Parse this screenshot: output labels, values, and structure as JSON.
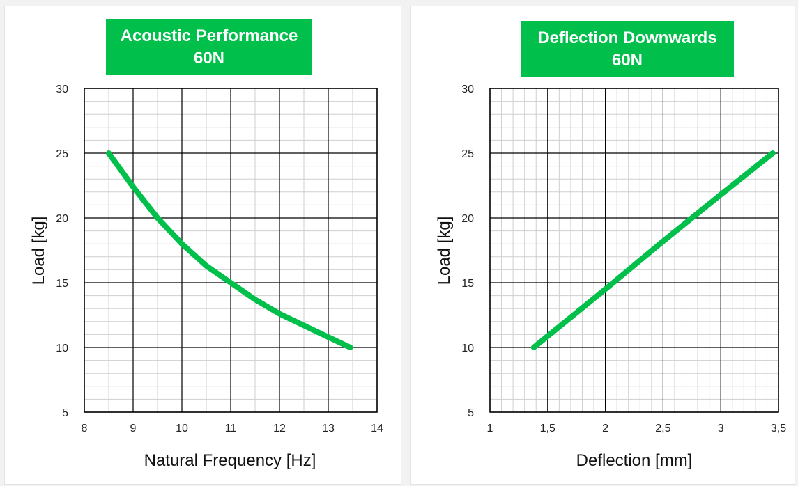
{
  "chart_data": [
    {
      "type": "line",
      "title": "Acoustic Performance",
      "subtitle": "60N",
      "xlabel": "Natural Frequency [Hz]",
      "ylabel": "Load [kg]",
      "xlim": [
        8,
        14
      ],
      "ylim": [
        5,
        30
      ],
      "x_ticks": [
        "8",
        "9",
        "10",
        "11",
        "12",
        "13",
        "14"
      ],
      "y_ticks": [
        "5",
        "10",
        "15",
        "20",
        "25",
        "30"
      ],
      "x_tick_values": [
        8,
        9,
        10,
        11,
        12,
        13,
        14
      ],
      "y_tick_values": [
        5,
        10,
        15,
        20,
        25,
        30
      ],
      "x_minor_step": 0.5,
      "y_minor_step": 1,
      "grid": true,
      "series": [
        {
          "x": [
            8.5,
            9.0,
            9.5,
            10.0,
            10.5,
            11.0,
            11.5,
            12.0,
            12.5,
            13.0,
            13.45
          ],
          "y": [
            25.0,
            22.4,
            20.0,
            18.0,
            16.3,
            15.0,
            13.7,
            12.6,
            11.7,
            10.8,
            10.0
          ]
        }
      ],
      "line_color": "#00c04b"
    },
    {
      "type": "line",
      "title": "Deflection Downwards",
      "subtitle": "60N",
      "xlabel": "Deflection [mm]",
      "ylabel": "Load [kg]",
      "xlim": [
        1,
        3.5
      ],
      "ylim": [
        5,
        30
      ],
      "x_ticks": [
        "1",
        "1,5",
        "2",
        "2,5",
        "3",
        "3,5"
      ],
      "y_ticks": [
        "5",
        "10",
        "15",
        "20",
        "25",
        "30"
      ],
      "x_tick_values": [
        1,
        1.5,
        2,
        2.5,
        3,
        3.5
      ],
      "y_tick_values": [
        5,
        10,
        15,
        20,
        25,
        30
      ],
      "x_minor_step": 0.1,
      "y_minor_step": 1,
      "grid": true,
      "series": [
        {
          "x": [
            1.38,
            2.0,
            2.5,
            3.0,
            3.45
          ],
          "y": [
            10.0,
            14.5,
            18.2,
            21.8,
            25.0
          ]
        }
      ],
      "line_color": "#00c04b"
    }
  ]
}
